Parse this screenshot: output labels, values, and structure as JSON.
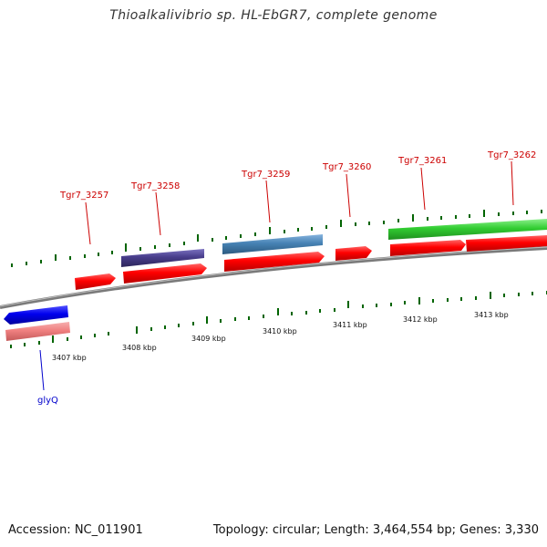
{
  "title": "Thioalkalivibrio sp. HL-EbGR7, complete genome",
  "footer": {
    "accession": "Accession: NC_011901",
    "summary": "Topology: circular; Length: 3,464,554 bp; Genes: 3,330"
  },
  "scale_labels": [
    "3407 kbp",
    "3408 kbp",
    "3409 kbp",
    "3410 kbp",
    "3411 kbp",
    "3412 kbp",
    "3413 kbp"
  ],
  "gene_labels": [
    {
      "text": "Tgr7_3257",
      "color": "#cc0000"
    },
    {
      "text": "Tgr7_3258",
      "color": "#cc0000"
    },
    {
      "text": "Tgr7_3259",
      "color": "#cc0000"
    },
    {
      "text": "Tgr7_3260",
      "color": "#cc0000"
    },
    {
      "text": "Tgr7_3261",
      "color": "#cc0000"
    },
    {
      "text": "Tgr7_3262",
      "color": "#cc0000"
    },
    {
      "text": "glyQ",
      "color": "#0000cc"
    }
  ],
  "colors": {
    "backbone": "#808080",
    "cds": "#ff0000",
    "rrna_pink": "#f08080",
    "blue_gene": "#0000ee",
    "purple_feature": "#483d8b",
    "steelblue_feature": "#4682b4",
    "green_feature": "#32cd32",
    "tick": "#006400"
  }
}
